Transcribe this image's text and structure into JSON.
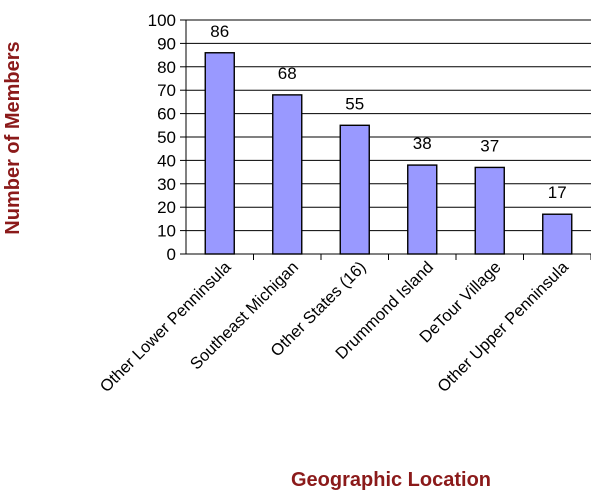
{
  "chart_data": {
    "type": "bar",
    "title": "",
    "xlabel": "Geographic Location",
    "ylabel": "Number of Members",
    "categories": [
      "Other Lower Penninsula",
      "Southeast Michigan",
      "Other States (16)",
      "Drummond Island",
      "DeTour Village",
      "Other Upper Penninsula"
    ],
    "values": [
      86,
      68,
      55,
      38,
      37,
      17
    ],
    "ylim": [
      0,
      100
    ],
    "yticks": [
      0,
      10,
      20,
      30,
      40,
      50,
      60,
      70,
      80,
      90,
      100
    ],
    "grid": true,
    "legend": "none",
    "colors": {
      "bar_fill": "#9999ff",
      "bar_stroke": "#000000",
      "axis_title": "#8b1a1a",
      "grid": "#000000"
    }
  }
}
